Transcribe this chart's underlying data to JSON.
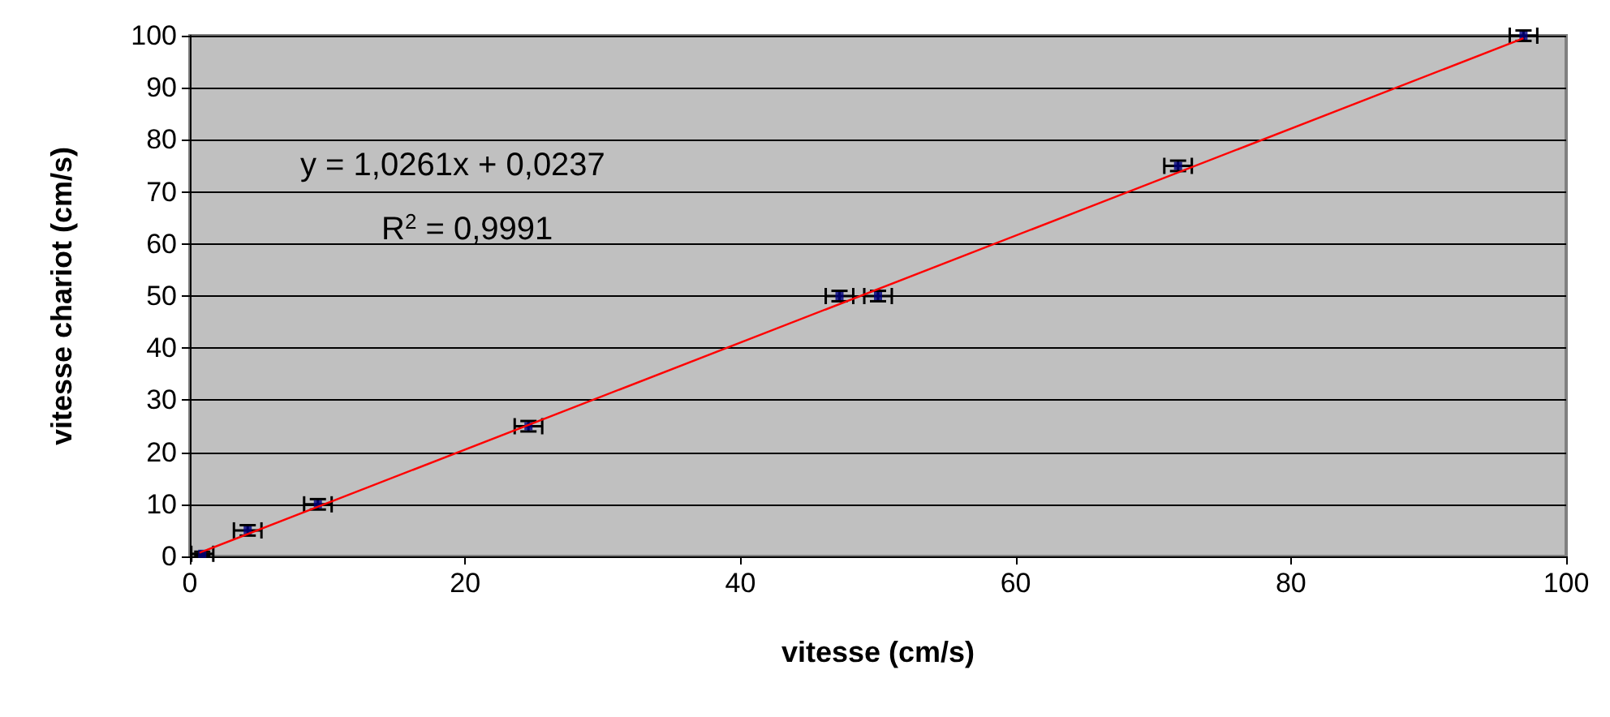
{
  "chart_data": {
    "type": "scatter",
    "xlabel": "vitesse (cm/s)",
    "ylabel": "vitesse chariot (cm/s)",
    "xlim": [
      0,
      100
    ],
    "xticks": [
      0,
      20,
      40,
      60,
      80,
      100
    ],
    "ylim": [
      0,
      100
    ],
    "yticks": [
      0,
      10,
      20,
      30,
      40,
      50,
      60,
      70,
      80,
      90,
      100
    ],
    "grid": "y",
    "marker": "square",
    "annotations": [
      "y = 1,0261x + 0,0237",
      "R$^{2}$ = 0,9991"
    ],
    "series": [
      {
        "color": "#000080",
        "x": [
          0.9,
          4.2,
          9.3,
          24.6,
          47.2,
          50.0,
          71.8,
          96.9
        ],
        "values": [
          0.5,
          5,
          10,
          25,
          50,
          50,
          75,
          100
        ],
        "errors": [
          0.4,
          1,
          1,
          1,
          1,
          1,
          1,
          1
        ],
        "xerrors": [
          0.8,
          1,
          1,
          1,
          1,
          1,
          1,
          1
        ]
      },
      {
        "type": "line",
        "color": "#ff0000",
        "x": [
          0.7,
          96.9
        ],
        "values": [
          0.7,
          99.5
        ],
        "marker": "none"
      }
    ]
  }
}
